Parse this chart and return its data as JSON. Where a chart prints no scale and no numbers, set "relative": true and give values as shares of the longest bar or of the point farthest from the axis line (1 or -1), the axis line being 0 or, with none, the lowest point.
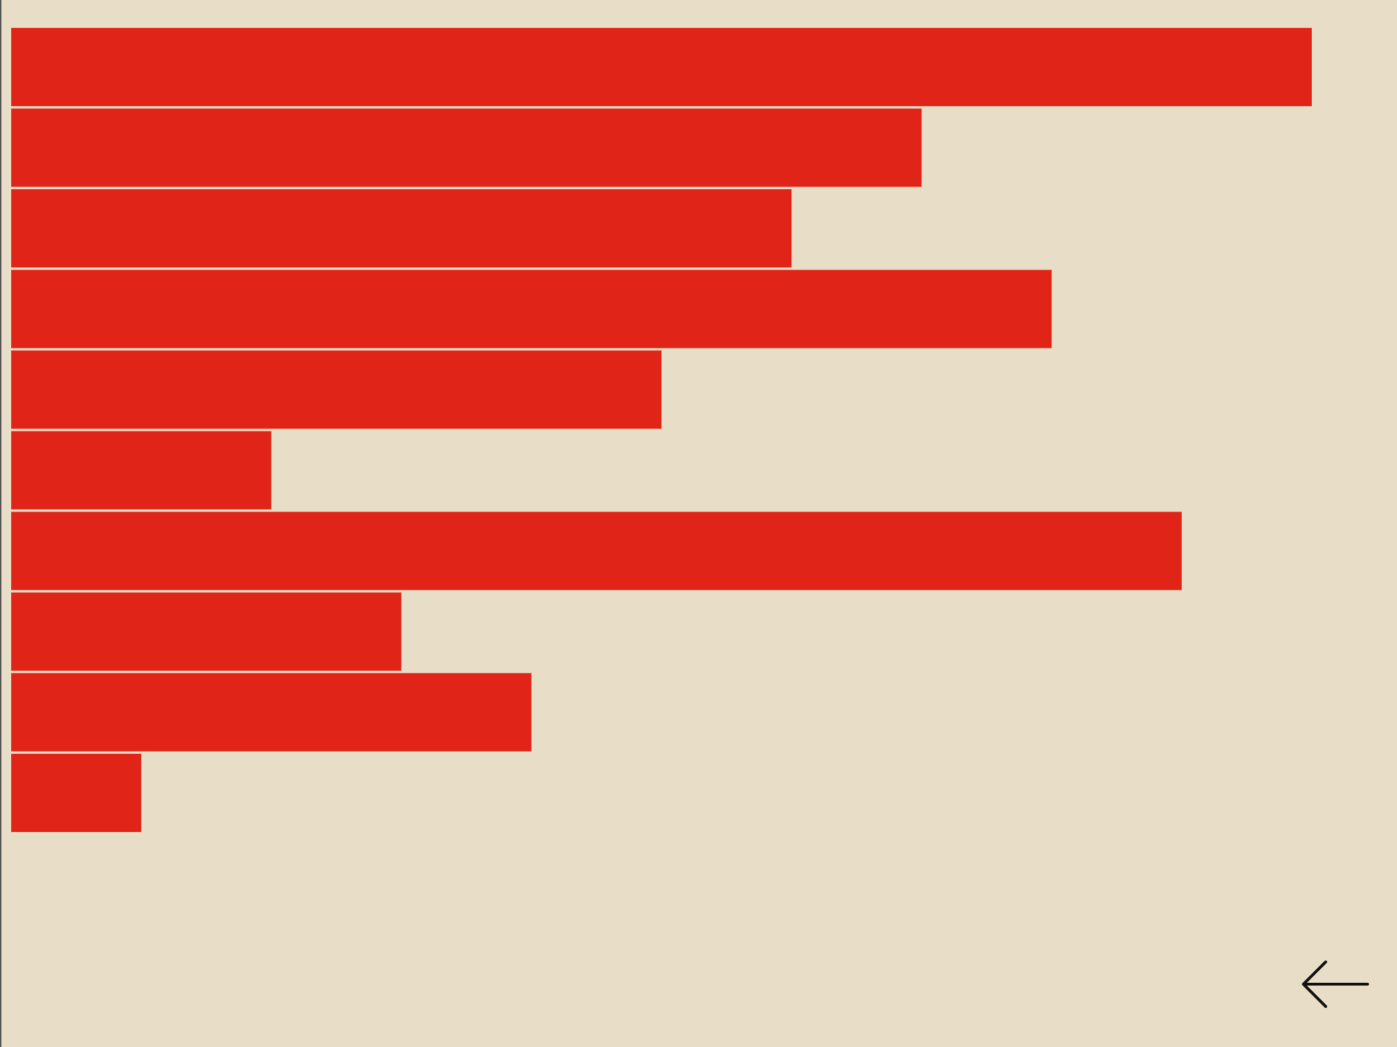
{
  "chart_data": {
    "type": "bar",
    "orientation": "horizontal",
    "relative": true,
    "categories": [
      null,
      null,
      null,
      null,
      null,
      null,
      null,
      null,
      null,
      null
    ],
    "values": [
      1,
      0.7,
      0.6,
      0.8,
      0.5,
      0.2,
      0.9,
      0.3,
      0.4,
      0.1
    ],
    "color": "#e02418"
  }
}
